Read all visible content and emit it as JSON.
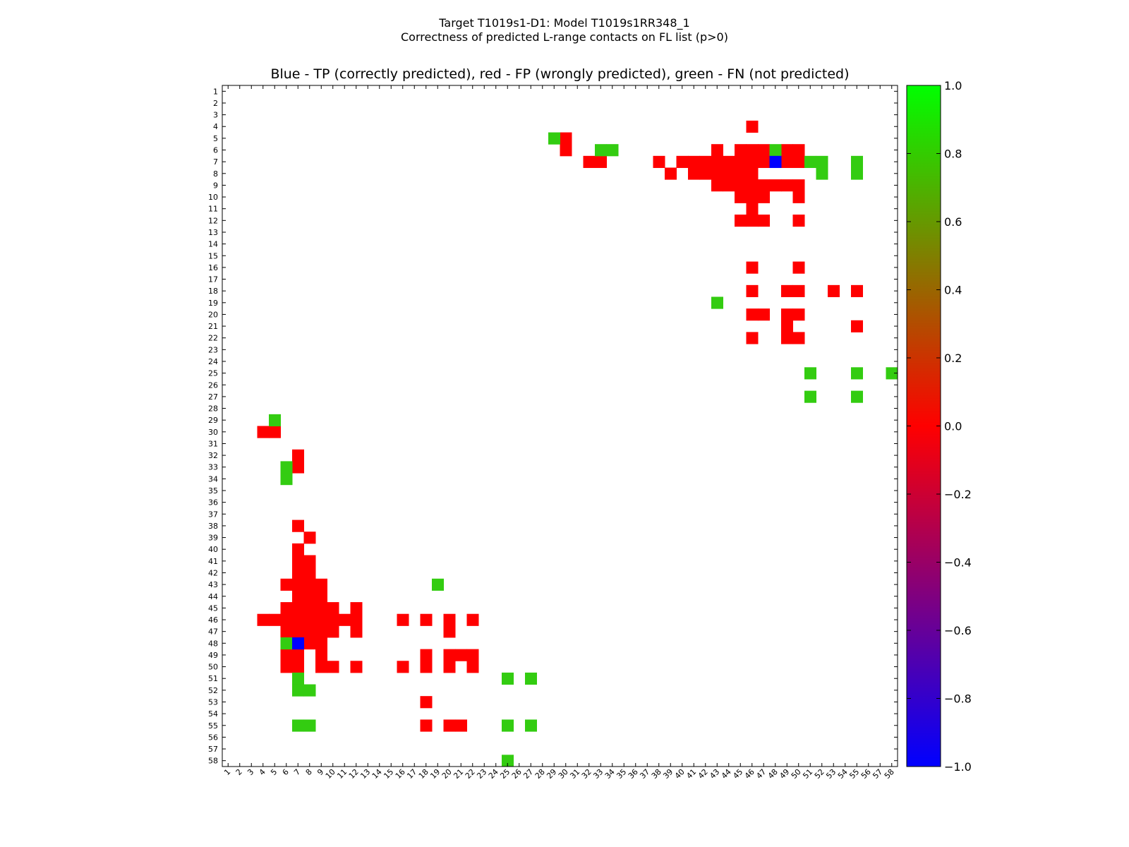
{
  "figure": {
    "suptitle_line1": "Target T1019s1-D1: Model T1019s1RR348_1",
    "suptitle_line2": "Correctness of predicted L-range contacts on FL list (p>0)"
  },
  "chart_data": {
    "type": "heatmap",
    "title": "Blue - TP (correctly predicted), red - FP (wrongly predicted), green - FN (not predicted)",
    "xlabel": "",
    "ylabel": "",
    "n": 58,
    "x_ticks": [
      "1",
      "2",
      "3",
      "4",
      "5",
      "6",
      "7",
      "8",
      "9",
      "10",
      "11",
      "12",
      "13",
      "14",
      "15",
      "16",
      "17",
      "18",
      "19",
      "20",
      "21",
      "22",
      "23",
      "24",
      "25",
      "26",
      "27",
      "28",
      "29",
      "30",
      "31",
      "32",
      "33",
      "34",
      "35",
      "36",
      "37",
      "38",
      "39",
      "40",
      "41",
      "42",
      "43",
      "44",
      "45",
      "46",
      "47",
      "48",
      "49",
      "50",
      "51",
      "52",
      "53",
      "54",
      "55",
      "56",
      "57",
      "58"
    ],
    "y_ticks": [
      "1",
      "2",
      "3",
      "4",
      "5",
      "6",
      "7",
      "8",
      "9",
      "10",
      "11",
      "12",
      "13",
      "14",
      "15",
      "16",
      "17",
      "18",
      "19",
      "20",
      "21",
      "22",
      "23",
      "24",
      "25",
      "26",
      "27",
      "28",
      "29",
      "30",
      "31",
      "32",
      "33",
      "34",
      "35",
      "36",
      "37",
      "38",
      "39",
      "40",
      "41",
      "42",
      "43",
      "44",
      "45",
      "46",
      "47",
      "48",
      "49",
      "50",
      "51",
      "52",
      "53",
      "54",
      "55",
      "56",
      "57",
      "58"
    ],
    "x_tick_labels_shown": [
      "1",
      "2",
      "3",
      "4",
      "5",
      "6",
      "7",
      "8",
      "9",
      "10",
      "11",
      "12",
      "13",
      "14",
      "15",
      "16",
      "17",
      "18",
      "19",
      "20",
      "21",
      "22",
      "23",
      "24",
      "25",
      "26",
      "27",
      "28",
      "29",
      "30",
      "31",
      "32",
      "33",
      "34",
      "35",
      "36",
      "37",
      "38",
      "39",
      "40",
      "41",
      "42",
      "43",
      "44",
      "45",
      "46",
      "47",
      "48",
      "49",
      "50",
      "51",
      "52",
      "53",
      "54",
      "55",
      "56",
      "57",
      "58"
    ],
    "colorbar": {
      "min": -1.0,
      "max": 1.0,
      "ticks": [
        "1.0",
        "0.8",
        "0.6",
        "0.4",
        "0.2",
        "0.0",
        "−0.2",
        "−0.4",
        "−0.6",
        "−0.8",
        "−1.0"
      ],
      "tick_values": [
        1.0,
        0.8,
        0.6,
        0.4,
        0.2,
        0.0,
        -0.2,
        -0.4,
        -0.6,
        -0.8,
        -1.0
      ],
      "colors": [
        "#0000ff",
        "#ff0000",
        "#00ff00"
      ]
    },
    "legend": {
      "TP": "#0000ff",
      "FP": "#ff0000",
      "FN": "#33cc11"
    },
    "cells": {
      "TP": [
        [
          7,
          48
        ],
        [
          48,
          7
        ]
      ],
      "FN": [
        [
          5,
          29
        ],
        [
          6,
          33
        ],
        [
          6,
          34
        ],
        [
          6,
          48
        ],
        [
          7,
          51
        ],
        [
          7,
          52
        ],
        [
          7,
          55
        ],
        [
          8,
          52
        ],
        [
          8,
          55
        ],
        [
          19,
          43
        ],
        [
          25,
          51
        ],
        [
          25,
          55
        ],
        [
          25,
          58
        ],
        [
          27,
          51
        ],
        [
          27,
          55
        ],
        [
          29,
          5
        ],
        [
          33,
          6
        ],
        [
          34,
          6
        ],
        [
          48,
          6
        ],
        [
          51,
          7
        ],
        [
          52,
          7
        ],
        [
          52,
          8
        ],
        [
          55,
          7
        ],
        [
          55,
          8
        ],
        [
          43,
          19
        ],
        [
          51,
          25
        ],
        [
          55,
          25
        ],
        [
          58,
          25
        ],
        [
          51,
          27
        ],
        [
          55,
          27
        ]
      ],
      "FP": [
        [
          4,
          46
        ],
        [
          5,
          30
        ],
        [
          6,
          30
        ],
        [
          6,
          43
        ],
        [
          6,
          45
        ],
        [
          6,
          46
        ],
        [
          6,
          47
        ],
        [
          6,
          49
        ],
        [
          6,
          50
        ],
        [
          7,
          32
        ],
        [
          7,
          33
        ],
        [
          7,
          38
        ],
        [
          7,
          40
        ],
        [
          7,
          41
        ],
        [
          7,
          42
        ],
        [
          7,
          43
        ],
        [
          7,
          44
        ],
        [
          7,
          45
        ],
        [
          7,
          46
        ],
        [
          7,
          47
        ],
        [
          7,
          49
        ],
        [
          7,
          50
        ],
        [
          8,
          39
        ],
        [
          8,
          41
        ],
        [
          8,
          42
        ],
        [
          8,
          43
        ],
        [
          8,
          44
        ],
        [
          8,
          45
        ],
        [
          8,
          46
        ],
        [
          9,
          43
        ],
        [
          9,
          44
        ],
        [
          9,
          45
        ],
        [
          9,
          46
        ],
        [
          9,
          47
        ],
        [
          9,
          48
        ],
        [
          9,
          49
        ],
        [
          9,
          50
        ],
        [
          10,
          45
        ],
        [
          10,
          46
        ],
        [
          10,
          47
        ],
        [
          10,
          50
        ],
        [
          11,
          46
        ],
        [
          12,
          45
        ],
        [
          12,
          46
        ],
        [
          12,
          47
        ],
        [
          12,
          50
        ],
        [
          16,
          46
        ],
        [
          16,
          50
        ],
        [
          18,
          46
        ],
        [
          18,
          49
        ],
        [
          18,
          50
        ],
        [
          18,
          53
        ],
        [
          18,
          55
        ],
        [
          20,
          46
        ],
        [
          20,
          47
        ],
        [
          20,
          49
        ],
        [
          20,
          50
        ],
        [
          21,
          49
        ],
        [
          21,
          55
        ],
        [
          22,
          46
        ],
        [
          22,
          49
        ],
        [
          22,
          50
        ],
        [
          30,
          4
        ],
        [
          30,
          5
        ],
        [
          32,
          7
        ],
        [
          33,
          7
        ],
        [
          38,
          7
        ],
        [
          39,
          8
        ],
        [
          40,
          7
        ],
        [
          41,
          7
        ],
        [
          41,
          8
        ],
        [
          42,
          7
        ],
        [
          42,
          8
        ],
        [
          43,
          6
        ],
        [
          43,
          7
        ],
        [
          43,
          8
        ],
        [
          43,
          9
        ],
        [
          44,
          7
        ],
        [
          44,
          8
        ],
        [
          44,
          9
        ],
        [
          45,
          6
        ],
        [
          45,
          7
        ],
        [
          45,
          8
        ],
        [
          45,
          9
        ],
        [
          45,
          10
        ],
        [
          45,
          12
        ],
        [
          46,
          4
        ],
        [
          46,
          5
        ],
        [
          46,
          6
        ],
        [
          46,
          7
        ],
        [
          46,
          8
        ],
        [
          46,
          9
        ],
        [
          46,
          10
        ],
        [
          46,
          11
        ],
        [
          46,
          12
        ],
        [
          46,
          16
        ],
        [
          46,
          18
        ],
        [
          46,
          20
        ],
        [
          46,
          22
        ],
        [
          47,
          6
        ],
        [
          47,
          7
        ],
        [
          47,
          8
        ],
        [
          47,
          9
        ],
        [
          47,
          10
        ],
        [
          47,
          12
        ],
        [
          47,
          20
        ],
        [
          48,
          8
        ],
        [
          48,
          9
        ],
        [
          49,
          6
        ],
        [
          49,
          7
        ],
        [
          49,
          9
        ],
        [
          49,
          18
        ],
        [
          49,
          20
        ],
        [
          49,
          21
        ],
        [
          49,
          22
        ],
        [
          50,
          6
        ],
        [
          50,
          7
        ],
        [
          50,
          9
        ],
        [
          50,
          10
        ],
        [
          50,
          12
        ],
        [
          50,
          16
        ],
        [
          50,
          18
        ],
        [
          50,
          20
        ],
        [
          50,
          22
        ],
        [
          53,
          18
        ],
        [
          55,
          18
        ],
        [
          55,
          20
        ],
        [
          55,
          21
        ]
      ]
    }
  }
}
